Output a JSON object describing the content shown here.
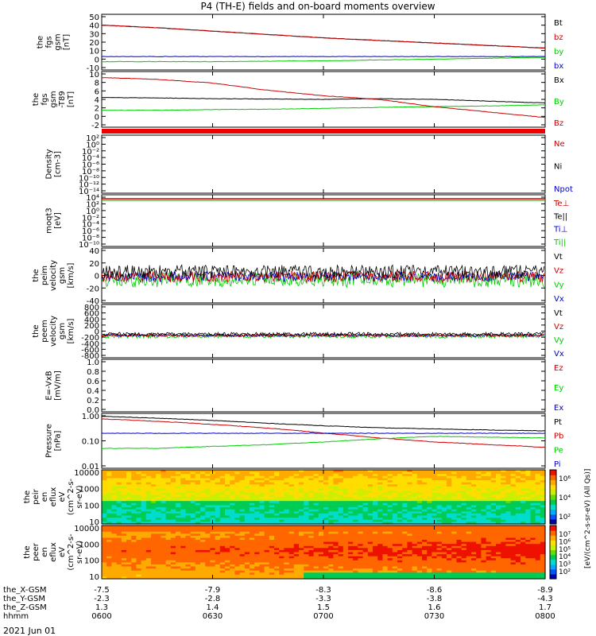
{
  "title": "P4 (TH-E) fields and on-board moments overview",
  "colors": {
    "black": "#000000",
    "red": "#cc0000",
    "green": "#00cc00",
    "blue": "#0000cc"
  },
  "chart_data": [
    {
      "type": "line",
      "id": "fgs_gsm",
      "ylabel": [
        "the",
        "fgs",
        "gsm",
        "[nT]"
      ],
      "ylim": [
        -10,
        50
      ],
      "yticks": [
        "50",
        "40",
        "30",
        "20",
        "10",
        "0",
        "-10"
      ],
      "legend": [
        {
          "label": "Bt",
          "color": "black"
        },
        {
          "label": "bz",
          "color": "red"
        },
        {
          "label": "by",
          "color": "green"
        },
        {
          "label": "bx",
          "color": "blue"
        }
      ],
      "series": [
        {
          "name": "Bt",
          "color": "black",
          "x": [
            0,
            15,
            30,
            45,
            60,
            75,
            90,
            105,
            120
          ],
          "values": [
            40,
            37,
            33,
            29,
            25,
            22,
            19,
            16,
            13
          ]
        },
        {
          "name": "bz",
          "color": "red",
          "x": [
            0,
            15,
            30,
            45,
            60,
            75,
            90,
            105,
            120
          ],
          "values": [
            40,
            37,
            33,
            29,
            25,
            22,
            19,
            16,
            13
          ]
        },
        {
          "name": "by",
          "color": "green",
          "x": [
            0,
            15,
            30,
            45,
            60,
            75,
            90,
            105,
            120
          ],
          "values": [
            -3,
            -3,
            -3,
            -2.5,
            -2,
            -1,
            0,
            1,
            2
          ]
        },
        {
          "name": "bx",
          "color": "blue",
          "x": [
            0,
            15,
            30,
            45,
            60,
            75,
            90,
            105,
            120
          ],
          "values": [
            3,
            3,
            3,
            3,
            3,
            3,
            3,
            3,
            3
          ]
        }
      ]
    },
    {
      "type": "line",
      "id": "fgs_gse_dt",
      "ylabel": [
        "the",
        "fgs",
        "gsm",
        "-T89",
        "[nT]"
      ],
      "ylim": [
        -3,
        11
      ],
      "yticks": [
        "10",
        "8",
        "6",
        "4",
        "2",
        "0",
        "-2"
      ],
      "legend": [
        {
          "label": "Bx",
          "color": "black"
        },
        {
          "label": "By",
          "color": "green"
        },
        {
          "label": "Bz",
          "color": "red"
        }
      ],
      "series": [
        {
          "name": "Bx",
          "color": "black",
          "x": [
            0,
            15,
            30,
            45,
            60,
            75,
            90,
            105,
            120
          ],
          "values": [
            4.5,
            4.4,
            4.2,
            4.1,
            4,
            4.2,
            4,
            3.5,
            3
          ]
        },
        {
          "name": "By",
          "color": "green",
          "x": [
            0,
            15,
            30,
            45,
            60,
            75,
            90,
            105,
            120
          ],
          "values": [
            1,
            1,
            1.2,
            1.3,
            1.5,
            1.8,
            2,
            2.2,
            2.5
          ]
        },
        {
          "name": "Bz",
          "color": "red",
          "x": [
            0,
            15,
            30,
            45,
            60,
            75,
            90,
            105,
            120
          ],
          "values": [
            10,
            9.5,
            8.5,
            6.5,
            5,
            4,
            2,
            0.5,
            -1
          ]
        }
      ]
    },
    {
      "type": "line",
      "id": "density",
      "ylabel": [
        "Density",
        "[cm-3]"
      ],
      "yticks": [
        "10²",
        "10⁰",
        "10⁻²",
        "10⁻⁴",
        "10⁻⁶",
        "10⁻⁸",
        "10⁻¹⁰",
        "10⁻¹²",
        "10⁻¹⁴"
      ],
      "legend": [
        {
          "label": "Ne",
          "color": "red"
        },
        {
          "label": "Ni",
          "color": "black"
        },
        {
          "label": "Npot",
          "color": "blue"
        }
      ]
    },
    {
      "type": "line",
      "id": "temperature",
      "ylabel": [
        "moqt3",
        "[eV]"
      ],
      "yticks": [
        "10⁴",
        "10²",
        "10⁰",
        "10⁻²",
        "10⁻⁴",
        "10⁻⁶",
        "10⁻⁸",
        "10⁻¹⁰"
      ],
      "legend": [
        {
          "label": "Te⊥",
          "color": "red"
        },
        {
          "label": "Te||",
          "color": "black"
        },
        {
          "label": "Ti⊥",
          "color": "blue"
        },
        {
          "label": "Ti||",
          "color": "green"
        }
      ]
    },
    {
      "type": "line",
      "id": "peim_velocity",
      "ylabel": [
        "the",
        "peim",
        "velocity",
        "gsm",
        "[km/s]"
      ],
      "ylim": [
        -40,
        40
      ],
      "yticks": [
        "40",
        "20",
        "0",
        "-20",
        "-40"
      ],
      "legend": [
        {
          "label": "Vt",
          "color": "black"
        },
        {
          "label": "Vz",
          "color": "red"
        },
        {
          "label": "Vy",
          "color": "green"
        },
        {
          "label": "Vx",
          "color": "blue"
        }
      ]
    },
    {
      "type": "line",
      "id": "peem_velocity",
      "ylabel": [
        "the",
        "peem",
        "velocity",
        "gsm",
        "[km/s]"
      ],
      "ylim": [
        -800,
        800
      ],
      "yticks": [
        "800",
        "600",
        "400",
        "200",
        "0",
        "-200",
        "-400",
        "-600",
        "-800"
      ],
      "legend": [
        {
          "label": "Vt",
          "color": "black"
        },
        {
          "label": "Vz",
          "color": "red"
        },
        {
          "label": "Vy",
          "color": "green"
        },
        {
          "label": "Vx",
          "color": "blue"
        }
      ]
    },
    {
      "type": "line",
      "id": "efield",
      "ylabel": [
        "E=-VxB",
        "[mV/m]"
      ],
      "ylim": [
        0,
        1
      ],
      "yticks": [
        "1.0",
        "0.8",
        "0.6",
        "0.4",
        "0.2",
        "0.0"
      ],
      "legend": [
        {
          "label": "Ez",
          "color": "red"
        },
        {
          "label": "Ey",
          "color": "green"
        },
        {
          "label": "Ex",
          "color": "blue"
        }
      ]
    },
    {
      "type": "line",
      "id": "pressure",
      "ylabel": [
        "Pressure",
        "[nPa]"
      ],
      "ylim": [
        0.01,
        1
      ],
      "log": true,
      "yticks": [
        "1.00",
        "0.10",
        "0.01"
      ],
      "legend": [
        {
          "label": "Pt",
          "color": "black"
        },
        {
          "label": "Pb",
          "color": "red"
        },
        {
          "label": "Pe",
          "color": "green"
        },
        {
          "label": "Pi",
          "color": "blue"
        }
      ],
      "series": [
        {
          "name": "Pt",
          "color": "black",
          "x": [
            0,
            15,
            30,
            45,
            60,
            75,
            90,
            105,
            120
          ],
          "values": [
            0.95,
            0.8,
            0.65,
            0.5,
            0.4,
            0.33,
            0.3,
            0.27,
            0.25
          ]
        },
        {
          "name": "Pb",
          "color": "red",
          "x": [
            0,
            15,
            30,
            45,
            60,
            75,
            90,
            105,
            120
          ],
          "values": [
            0.75,
            0.6,
            0.45,
            0.32,
            0.2,
            0.13,
            0.09,
            0.07,
            0.055
          ]
        },
        {
          "name": "Pe",
          "color": "green",
          "x": [
            0,
            15,
            30,
            45,
            60,
            75,
            90,
            105,
            120
          ],
          "values": [
            0.05,
            0.05,
            0.06,
            0.07,
            0.09,
            0.12,
            0.15,
            0.14,
            0.13
          ]
        },
        {
          "name": "Pi",
          "color": "blue",
          "x": [
            0,
            15,
            30,
            45,
            60,
            75,
            90,
            105,
            120
          ],
          "values": [
            0.2,
            0.2,
            0.2,
            0.2,
            0.2,
            0.2,
            0.2,
            0.2,
            0.2
          ]
        }
      ]
    },
    {
      "type": "heatmap",
      "id": "peir_spec",
      "ylabel": [
        "the",
        "peir",
        "en",
        "eflux",
        "eV",
        "(cm^2-s-",
        "sr-eV)"
      ],
      "yticks": [
        "10000",
        "1000",
        "100",
        "10"
      ],
      "colorbar": {
        "ticks": [
          "10⁶",
          "10⁴",
          "10²"
        ],
        "label": "[eV/(cm^2-s-sr-eV) (All Qs)]"
      }
    },
    {
      "type": "heatmap",
      "id": "peer_spec",
      "ylabel": [
        "the",
        "peer",
        "en",
        "eflux",
        "eV",
        "(cm^2-s-",
        "sr-eV)"
      ],
      "yticks": [
        "10000",
        "1000",
        "100",
        "10"
      ],
      "colorbar": {
        "ticks": [
          "10⁷",
          "10⁶",
          "10⁵",
          "10⁴",
          "10³",
          "10²"
        ]
      }
    }
  ],
  "xaxis": {
    "rows": [
      {
        "label": "the_X-GSM",
        "values": [
          "-7.5",
          "-7.9",
          "-8.3",
          "-8.6",
          "-8.9"
        ]
      },
      {
        "label": "the_Y-GSM",
        "values": [
          "-2.3",
          "-2.8",
          "-3.3",
          "-3.8",
          "-4.3"
        ]
      },
      {
        "label": "the_Z-GSM",
        "values": [
          "1.3",
          "1.4",
          "1.5",
          "1.6",
          "1.7"
        ]
      },
      {
        "label": "hhmm",
        "values": [
          "0600",
          "0630",
          "0700",
          "0730",
          "0800"
        ]
      }
    ],
    "date": "2021 Jun 01"
  }
}
